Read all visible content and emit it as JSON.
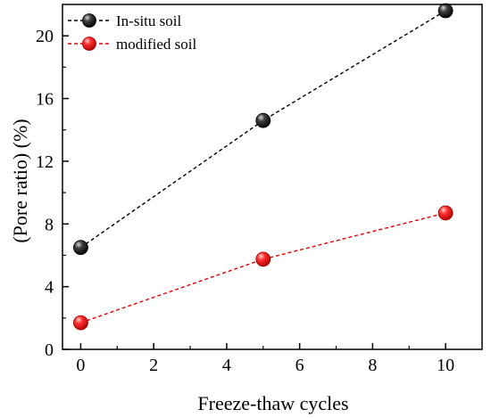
{
  "chart_data": {
    "type": "line",
    "xlabel": "Freeze-thaw cycles",
    "ylabel": "(Pore ratio) (%)",
    "xlim": [
      -0.5,
      11
    ],
    "ylim": [
      0,
      22
    ],
    "xticks": [
      0,
      2,
      4,
      6,
      8,
      10
    ],
    "yticks": [
      0,
      4,
      8,
      12,
      16,
      20
    ],
    "x": [
      0,
      5,
      10
    ],
    "series": [
      {
        "name": "In-situ soil",
        "values": [
          6.5,
          14.6,
          21.6
        ],
        "color": "#000000",
        "marker": "sphere-black"
      },
      {
        "name": "modified soil",
        "values": [
          1.7,
          5.75,
          8.7
        ],
        "color": "#e00000",
        "marker": "sphere-red"
      }
    ],
    "legend_position": "top-left",
    "grid": false,
    "line_style": "dashed"
  }
}
